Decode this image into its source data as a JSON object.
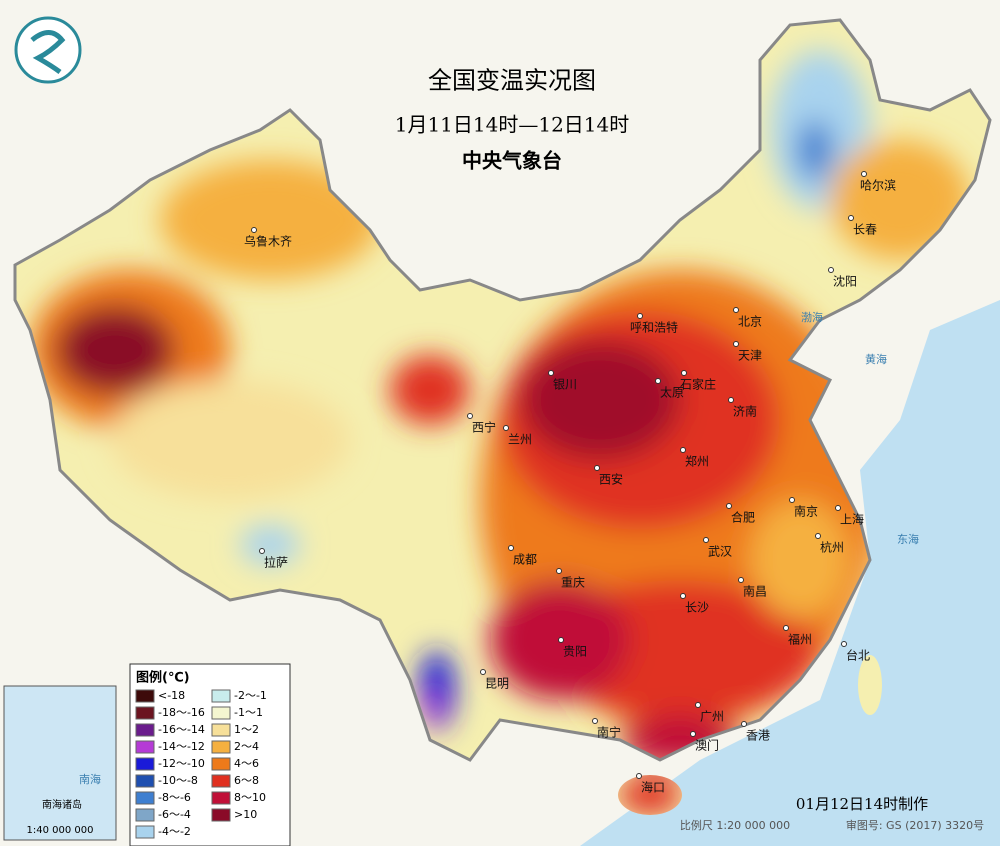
{
  "header": {
    "title": "全国变温实况图",
    "subtitle": "1月11日14时—12日14时",
    "agency": "中央气象台"
  },
  "legend": {
    "title": "图例(℃)",
    "items": [
      {
        "label": "<-18",
        "color": "#3d0a0a"
      },
      {
        "label": "-18～-16",
        "color": "#6b1420"
      },
      {
        "label": "-16～-14",
        "color": "#6a1c8c"
      },
      {
        "label": "-14～-12",
        "color": "#b53bd6"
      },
      {
        "label": "-12～-10",
        "color": "#1a1ad8"
      },
      {
        "label": "-10～-8",
        "color": "#1f4fb0"
      },
      {
        "label": "-8～-6",
        "color": "#3f7fd0"
      },
      {
        "label": "-6～-4",
        "color": "#7fa6c8"
      },
      {
        "label": "-4～-2",
        "color": "#a9d3ee"
      },
      {
        "label": "-2～-1",
        "color": "#c8ecec"
      },
      {
        "label": "-1～1",
        "color": "#f4f6d0"
      },
      {
        "label": "1～2",
        "color": "#f7e09a"
      },
      {
        "label": "2～4",
        "color": "#f5b040"
      },
      {
        "label": "4～6",
        "color": "#ee7a1a"
      },
      {
        "label": "6～8",
        "color": "#e03020"
      },
      {
        "label": "8～10",
        "color": "#c01038"
      },
      {
        "label": ">10",
        "color": "#8a0a28"
      }
    ]
  },
  "cities": [
    "乌鲁木齐",
    "哈尔滨",
    "长春",
    "沈阳",
    "呼和浩特",
    "北京",
    "天津",
    "石家庄",
    "太原",
    "银川",
    "济南",
    "西宁",
    "兰州",
    "郑州",
    "西安",
    "合肥",
    "南京",
    "上海",
    "杭州",
    "武汉",
    "成都",
    "重庆",
    "长沙",
    "南昌",
    "拉萨",
    "贵阳",
    "昆明",
    "福州",
    "台北",
    "南宁",
    "广州",
    "澳门",
    "香港",
    "海口"
  ],
  "seas": [
    "渤海",
    "黄海",
    "东海",
    "南海"
  ],
  "inset": {
    "title": "南海诸岛",
    "scale": "1:40 000 000"
  },
  "footer": {
    "made": "01月12日14时制作",
    "scale": "比例尺 1:20 000 000",
    "review": "审图号: GS (2017) 3320号"
  }
}
